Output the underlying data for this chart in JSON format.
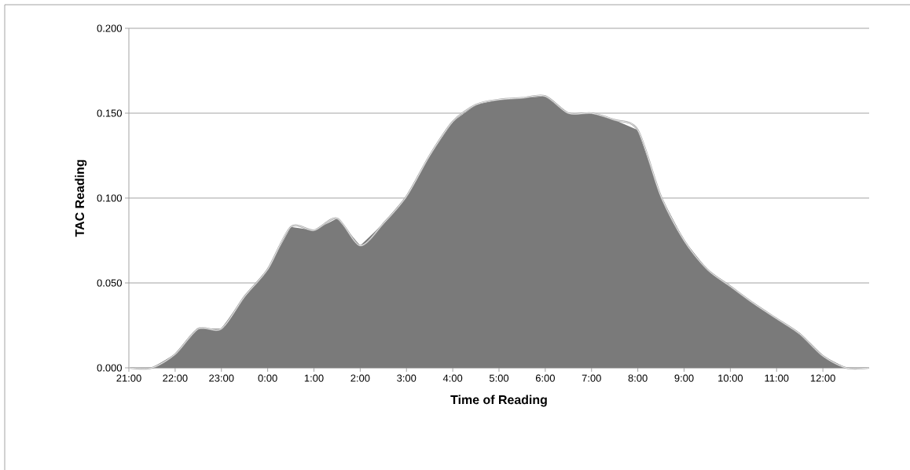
{
  "chart_data": {
    "type": "area",
    "xlabel": "Time of Reading",
    "ylabel": "TAC Reading",
    "x": [
      "2000-01-01T21:00",
      "2000-01-01T21:30",
      "2000-01-01T22:00",
      "2000-01-01T22:30",
      "2000-01-01T23:00",
      "2000-01-01T23:30",
      "2000-01-02T00:00",
      "2000-01-02T00:30",
      "2000-01-02T01:00",
      "2000-01-02T01:30",
      "2000-01-02T02:00",
      "2000-01-02T02:30",
      "2000-01-02T03:00",
      "2000-01-02T03:30",
      "2000-01-02T04:00",
      "2000-01-02T04:30",
      "2000-01-02T05:00",
      "2000-01-02T05:30",
      "2000-01-02T06:00",
      "2000-01-02T06:30",
      "2000-01-02T07:00",
      "2000-01-02T07:30",
      "2000-01-02T08:00",
      "2000-01-02T08:30",
      "2000-01-02T09:00",
      "2000-01-02T09:30",
      "2000-01-02T10:00",
      "2000-01-02T10:30",
      "2000-01-02T11:00",
      "2000-01-02T11:30",
      "2000-01-02T12:00",
      "2000-01-02T12:30",
      "2000-01-02T13:00"
    ],
    "values": [
      0,
      0,
      0.008,
      0.023,
      0.023,
      0.042,
      0.058,
      0.083,
      0.081,
      0.088,
      0.072,
      0.085,
      0.101,
      0.125,
      0.145,
      0.155,
      0.158,
      0.159,
      0.16,
      0.15,
      0.15,
      0.146,
      0.14,
      0.101,
      0.075,
      0.058,
      0.048,
      0.038,
      0.029,
      0.02,
      0.007,
      0,
      0
    ],
    "color": "#7a7a7a",
    "xlim": [
      "2000-01-01T21:00",
      "2000-01-02T13:00"
    ],
    "ylim": [
      0,
      0.2
    ],
    "xticks": [
      {
        "value": "2000-01-01T21:00",
        "label": "21:00"
      },
      {
        "value": "2000-01-01T22:00",
        "label": "22:00"
      },
      {
        "value": "2000-01-01T23:00",
        "label": "23:00"
      },
      {
        "value": "2000-01-02T00:00",
        "label": "0:00"
      },
      {
        "value": "2000-01-02T01:00",
        "label": "1:00"
      },
      {
        "value": "2000-01-02T02:00",
        "label": "2:00"
      },
      {
        "value": "2000-01-02T03:00",
        "label": "3:00"
      },
      {
        "value": "2000-01-02T04:00",
        "label": "4:00"
      },
      {
        "value": "2000-01-02T05:00",
        "label": "5:00"
      },
      {
        "value": "2000-01-02T06:00",
        "label": "6:00"
      },
      {
        "value": "2000-01-02T07:00",
        "label": "7:00"
      },
      {
        "value": "2000-01-02T08:00",
        "label": "8:00"
      },
      {
        "value": "2000-01-02T09:00",
        "label": "9:00"
      },
      {
        "value": "2000-01-02T10:00",
        "label": "10:00"
      },
      {
        "value": "2000-01-02T11:00",
        "label": "11:00"
      },
      {
        "value": "2000-01-02T12:00",
        "label": "12:00"
      }
    ],
    "yticks": [
      {
        "value": 0,
        "label": "0.000"
      },
      {
        "value": 0.05,
        "label": "0.050"
      },
      {
        "value": 0.1,
        "label": "0.100"
      },
      {
        "value": 0.15,
        "label": "0.150"
      },
      {
        "value": 0.2,
        "label": "0.200"
      }
    ],
    "grid": "y"
  }
}
